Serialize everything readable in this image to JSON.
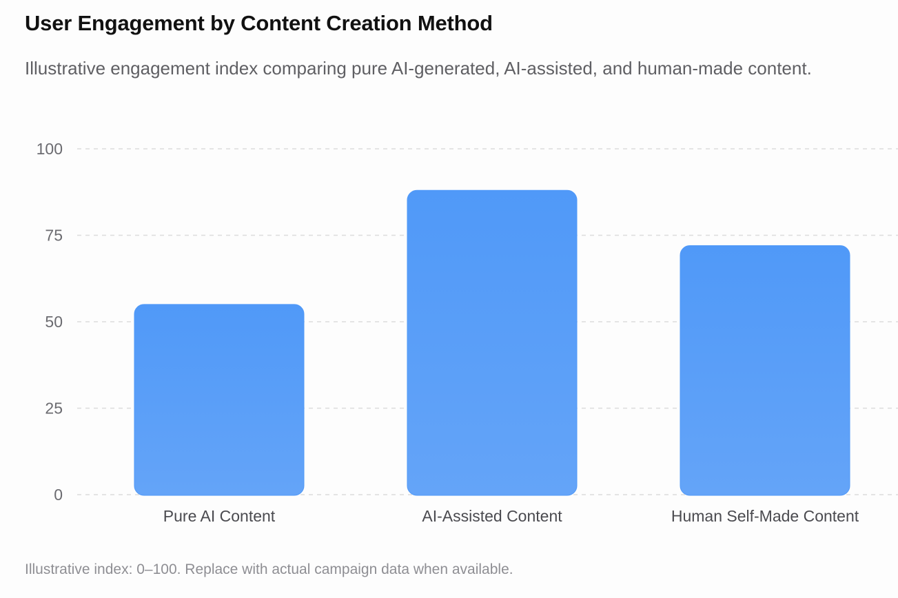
{
  "header": {
    "title": "User Engagement by Content Creation Method",
    "subtitle": "Illustrative engagement index comparing pure AI-generated, AI-assisted, and human-made content."
  },
  "footer": {
    "note": "Illustrative index: 0–100. Replace with actual campaign data when available."
  },
  "colors": {
    "bar_top": "#5099f8",
    "bar_bottom": "#64a4f8",
    "grid": "#dcdcdc",
    "background": "#fdfdfd"
  },
  "chart_data": {
    "type": "bar",
    "categories": [
      "Pure AI Content",
      "AI-Assisted Content",
      "Human Self-Made Content"
    ],
    "values": [
      55,
      88,
      72
    ],
    "yticks": [
      0,
      25,
      50,
      75,
      100
    ],
    "ylim": [
      0,
      100
    ],
    "grid": true,
    "legend": "none"
  }
}
